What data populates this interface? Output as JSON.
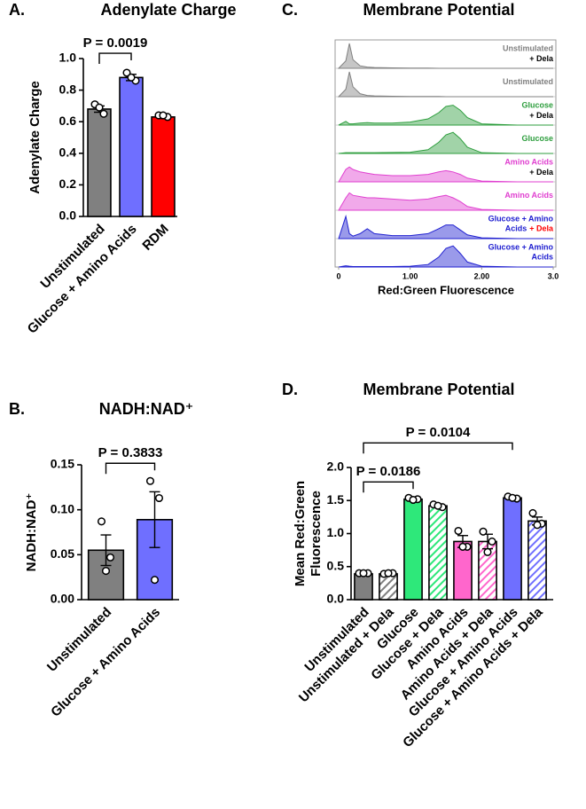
{
  "chart_data": [
    {
      "type": "bar",
      "panel": "A.",
      "title": "Adenylate Charge",
      "ylabel": [
        "Adenylate Charge"
      ],
      "categories": [
        "Unstimulated",
        "Glucose + Amino Acids",
        "RDM"
      ],
      "values": [
        0.68,
        0.88,
        0.63
      ],
      "errors": [
        0.02,
        0.02,
        0.01
      ],
      "points": [
        [
          0.71,
          0.65,
          0.69
        ],
        [
          0.91,
          0.86,
          0.88
        ],
        [
          0.64,
          0.63,
          0.64
        ]
      ],
      "colors": [
        "#808080",
        "#6f6fff",
        "#ff0000"
      ],
      "hatched": [
        false,
        false,
        false
      ],
      "ylim": [
        0,
        1.0
      ],
      "yticks": [
        {
          "value": 0,
          "label": "0.0"
        },
        {
          "value": 0.2,
          "label": "0.2"
        },
        {
          "value": 0.4,
          "label": "0.4"
        },
        {
          "value": 0.6,
          "label": "0.6"
        },
        {
          "value": 0.8,
          "label": "0.8"
        },
        {
          "value": 1.0,
          "label": "1.0"
        }
      ],
      "annotations": [
        {
          "text": "P = 0.0019",
          "between": [
            "Unstimulated",
            "Glucose + Amino Acids"
          ]
        }
      ]
    },
    {
      "type": "bar",
      "panel": "B.",
      "title": "NADH:NAD⁺",
      "ylabel": [
        "NADH:NAD⁺"
      ],
      "categories": [
        "Unstimulated",
        "Glucose + Amino Acids"
      ],
      "values": [
        0.055,
        0.089
      ],
      "errors": [
        0.017,
        0.031
      ],
      "points": [
        [
          0.087,
          0.047,
          0.032
        ],
        [
          0.132,
          0.113,
          0.022
        ]
      ],
      "colors": [
        "#808080",
        "#6f6fff"
      ],
      "hatched": [
        false,
        false
      ],
      "ylim": [
        0,
        0.15
      ],
      "yticks": [
        {
          "value": 0,
          "label": "0.00"
        },
        {
          "value": 0.05,
          "label": "0.05"
        },
        {
          "value": 0.1,
          "label": "0.10"
        },
        {
          "value": 0.15,
          "label": "0.15"
        }
      ],
      "annotations": [
        {
          "text": "P = 0.3833",
          "between": [
            "Unstimulated",
            "Glucose + Amino Acids"
          ]
        }
      ]
    },
    {
      "type": "ridgeline",
      "panel": "C.",
      "title": "Membrane Potential",
      "xlabel": "Red:Green Fluorescence",
      "x": [
        0,
        0.1,
        0.15,
        0.2,
        0.3,
        0.4,
        0.5,
        0.75,
        1.0,
        1.25,
        1.4,
        1.5,
        1.6,
        1.7,
        1.8,
        2.0,
        2.5,
        3.0
      ],
      "xlim": [
        0,
        3.0
      ],
      "xticks": [
        0,
        {
          "value": 1,
          "label": "1.00"
        },
        {
          "value": 2,
          "label": "2.00"
        },
        {
          "value": 3,
          "label": "3.0"
        }
      ],
      "ylim": [
        0,
        1
      ],
      "dela_color": "#ff0000",
      "series": [
        {
          "label": [
            "Unstimulated"
          ],
          "dela": "+ Dela",
          "color": "#808080",
          "values": [
            0,
            0.3,
            1.0,
            0.35,
            0.1,
            0.05,
            0.03,
            0.02,
            0.01,
            0.01,
            0,
            0,
            0,
            0,
            0,
            0,
            0,
            0
          ]
        },
        {
          "label": [
            "Unstimulated"
          ],
          "color": "#808080",
          "values": [
            0,
            0.3,
            1.0,
            0.4,
            0.12,
            0.05,
            0.03,
            0.02,
            0.01,
            0.01,
            0.01,
            0,
            0,
            0,
            0,
            0,
            0,
            0
          ]
        },
        {
          "label": [
            "Glucose"
          ],
          "dela": "+ Dela",
          "color": "#2e9e3e",
          "values": [
            0,
            0.15,
            0.05,
            0.05,
            0.08,
            0.1,
            0.08,
            0.08,
            0.12,
            0.25,
            0.5,
            0.75,
            0.8,
            0.6,
            0.3,
            0.05,
            0,
            0
          ]
        },
        {
          "label": [
            "Glucose"
          ],
          "color": "#2e9e3e",
          "values": [
            0,
            0.03,
            0.03,
            0.03,
            0.03,
            0.03,
            0.03,
            0.04,
            0.05,
            0.15,
            0.45,
            0.75,
            0.85,
            0.6,
            0.25,
            0.03,
            0,
            0
          ]
        },
        {
          "label": [
            "Amino Acids"
          ],
          "dela": "+ Dela",
          "color": "#e040d0",
          "values": [
            0,
            0.5,
            0.6,
            0.5,
            0.4,
            0.35,
            0.3,
            0.25,
            0.25,
            0.3,
            0.4,
            0.45,
            0.4,
            0.3,
            0.15,
            0.03,
            0,
            0
          ]
        },
        {
          "label": [
            "Amino Acids"
          ],
          "color": "#e040d0",
          "values": [
            0,
            0.5,
            0.7,
            0.6,
            0.55,
            0.5,
            0.5,
            0.45,
            0.4,
            0.45,
            0.55,
            0.6,
            0.5,
            0.35,
            0.15,
            0.03,
            0,
            0
          ]
        },
        {
          "label": [
            "Glucose + Amino",
            "Acids"
          ],
          "dela": "+ Dela",
          "color": "#2020d0",
          "values": [
            0,
            0.9,
            0.2,
            0.1,
            0.2,
            0.4,
            0.2,
            0.12,
            0.12,
            0.2,
            0.4,
            0.55,
            0.55,
            0.35,
            0.15,
            0.03,
            0,
            0
          ]
        },
        {
          "label": [
            "Glucose + Amino",
            "Acids"
          ],
          "color": "#2020d0",
          "values": [
            0,
            0.05,
            0.03,
            0.02,
            0.02,
            0.02,
            0.02,
            0.02,
            0.03,
            0.1,
            0.4,
            0.75,
            0.85,
            0.55,
            0.2,
            0.03,
            0,
            0
          ]
        }
      ]
    },
    {
      "type": "bar",
      "panel": "D.",
      "title": "Membrane Potential",
      "ylabel": [
        "Mean Red:Green",
        "Fluorescence"
      ],
      "categories": [
        "Unstimulated",
        "Unstimulated + Dela",
        "Glucose",
        "Glucose + Dela",
        "Amino Acids",
        "Amino Acids + Dela",
        "Glucose + Amino Acids",
        "Glucose + Amino Acids + Dela"
      ],
      "values": [
        0.39,
        0.39,
        1.52,
        1.42,
        0.88,
        0.88,
        1.54,
        1.19
      ],
      "errors": [
        0.01,
        0.01,
        0.02,
        0.02,
        0.09,
        0.11,
        0.02,
        0.06
      ],
      "points": [
        [
          0.4,
          0.4,
          0.4
        ],
        [
          0.39,
          0.4,
          0.4
        ],
        [
          1.54,
          1.52,
          1.51
        ],
        [
          1.44,
          1.4,
          1.42
        ],
        [
          1.04,
          0.8,
          0.8
        ],
        [
          1.03,
          0.88,
          0.72
        ],
        [
          1.56,
          1.53,
          1.54
        ],
        [
          1.31,
          1.15,
          1.13
        ]
      ],
      "colors": [
        "#808080",
        "#808080",
        "#2ee87a",
        "#2ee87a",
        "#ff66cc",
        "#ff66cc",
        "#6f6fff",
        "#6f6fff"
      ],
      "hatched": [
        false,
        true,
        false,
        true,
        false,
        true,
        false,
        true
      ],
      "ylim": [
        0,
        2.0
      ],
      "yticks": [
        {
          "value": 0,
          "label": "0.0"
        },
        {
          "value": 0.5,
          "label": "0.5"
        },
        {
          "value": 1.0,
          "label": "1.0"
        },
        {
          "value": 1.5,
          "label": "1.5"
        },
        {
          "value": 2.0,
          "label": "2.0"
        }
      ],
      "annotations": [
        {
          "text": "P = 0.0186",
          "between": [
            "Unstimulated",
            "Glucose"
          ]
        },
        {
          "text": "P = 0.0104",
          "between": [
            "Unstimulated",
            "Glucose + Amino Acids"
          ]
        }
      ]
    }
  ]
}
